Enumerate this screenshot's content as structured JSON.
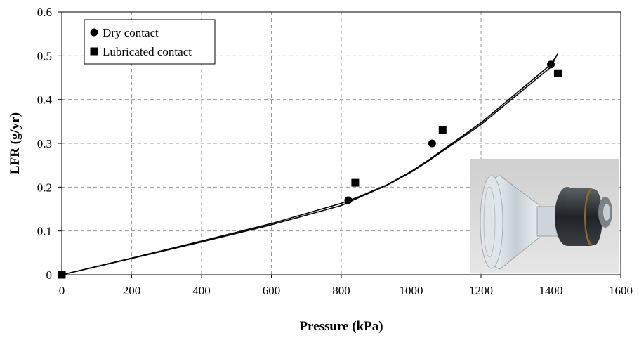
{
  "chart_data": {
    "type": "scatter",
    "xlabel": "Pressure (kPa)",
    "ylabel": "LFR (g/yr)",
    "xlim": [
      0,
      1600
    ],
    "ylim": [
      0,
      0.6
    ],
    "xticks": [
      0,
      200,
      400,
      600,
      800,
      1000,
      1200,
      1400,
      1600
    ],
    "yticks": [
      0,
      0.1,
      0.2,
      0.3,
      0.4,
      0.5,
      0.6
    ],
    "ytick_labels": [
      "0",
      "0.1",
      "0.2",
      "0.3",
      "0.4",
      "0.5",
      "0.6"
    ],
    "grid": true,
    "legend_position": "top-left",
    "series": [
      {
        "name": "Dry contact",
        "marker": "circle",
        "x": [
          0,
          820,
          1060,
          1400
        ],
        "y": [
          0,
          0.17,
          0.3,
          0.48
        ]
      },
      {
        "name": "Lubricated contact",
        "marker": "square",
        "x": [
          0,
          840,
          1090,
          1420
        ],
        "y": [
          0,
          0.21,
          0.33,
          0.46
        ]
      }
    ],
    "fit_lines": [
      {
        "x": [
          0,
          200,
          400,
          600,
          800,
          850,
          930,
          1000,
          1050,
          1200,
          1400,
          1420
        ],
        "y": [
          0,
          0.038,
          0.077,
          0.117,
          0.163,
          0.178,
          0.205,
          0.236,
          0.262,
          0.347,
          0.48,
          0.505
        ]
      },
      {
        "x": [
          0,
          200,
          400,
          600,
          800,
          850,
          930,
          1000,
          1050,
          1200,
          1400,
          1415
        ],
        "y": [
          0,
          0.037,
          0.075,
          0.114,
          0.158,
          0.176,
          0.204,
          0.234,
          0.26,
          0.343,
          0.474,
          0.498
        ]
      }
    ],
    "inset_photo": "seal-component-photo"
  }
}
